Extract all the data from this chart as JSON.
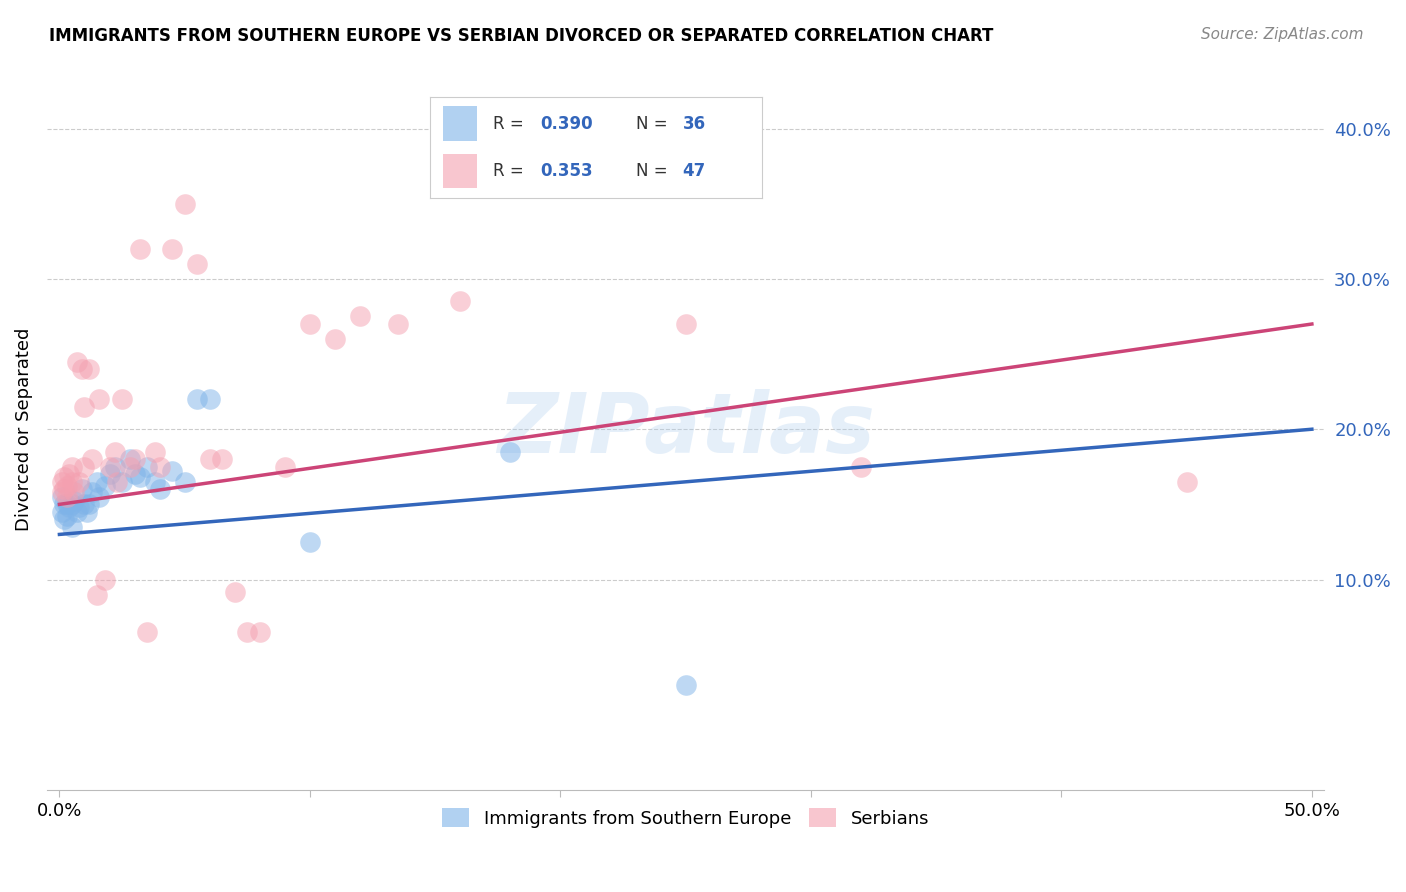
{
  "title": "IMMIGRANTS FROM SOUTHERN EUROPE VS SERBIAN DIVORCED OR SEPARATED CORRELATION CHART",
  "source": "Source: ZipAtlas.com",
  "ylabel": "Divorced or Separated",
  "xlim": [
    -0.005,
    0.505
  ],
  "ylim": [
    -0.04,
    0.44
  ],
  "yticks": [
    0.1,
    0.2,
    0.3,
    0.4
  ],
  "ytick_labels": [
    "10.0%",
    "20.0%",
    "30.0%",
    "40.0%"
  ],
  "legend_label1": "Immigrants from Southern Europe",
  "legend_label2": "Serbians",
  "blue_color": "#7EB3E8",
  "pink_color": "#F4A0B0",
  "blue_line_color": "#3366BB",
  "pink_line_color": "#CC4477",
  "watermark": "ZIPatlas",
  "blue_line_x0": 0.0,
  "blue_line_y0": 0.13,
  "blue_line_x1": 0.5,
  "blue_line_y1": 0.2,
  "pink_line_x0": 0.0,
  "pink_line_y0": 0.15,
  "pink_line_x1": 0.5,
  "pink_line_y1": 0.27,
  "blue_scatter_x": [
    0.001,
    0.001,
    0.002,
    0.002,
    0.003,
    0.003,
    0.004,
    0.005,
    0.005,
    0.006,
    0.007,
    0.008,
    0.009,
    0.01,
    0.011,
    0.012,
    0.013,
    0.015,
    0.016,
    0.018,
    0.02,
    0.022,
    0.025,
    0.028,
    0.03,
    0.032,
    0.035,
    0.038,
    0.04,
    0.045,
    0.05,
    0.055,
    0.06,
    0.1,
    0.18,
    0.25
  ],
  "blue_scatter_y": [
    0.145,
    0.155,
    0.14,
    0.15,
    0.15,
    0.142,
    0.148,
    0.135,
    0.15,
    0.152,
    0.145,
    0.148,
    0.16,
    0.15,
    0.145,
    0.15,
    0.158,
    0.165,
    0.155,
    0.162,
    0.17,
    0.175,
    0.165,
    0.18,
    0.17,
    0.168,
    0.175,
    0.165,
    0.16,
    0.172,
    0.165,
    0.22,
    0.22,
    0.125,
    0.185,
    0.03
  ],
  "pink_scatter_x": [
    0.001,
    0.001,
    0.002,
    0.002,
    0.003,
    0.003,
    0.004,
    0.005,
    0.005,
    0.006,
    0.007,
    0.008,
    0.009,
    0.01,
    0.01,
    0.012,
    0.013,
    0.015,
    0.016,
    0.018,
    0.02,
    0.022,
    0.023,
    0.025,
    0.028,
    0.03,
    0.032,
    0.035,
    0.038,
    0.04,
    0.045,
    0.05,
    0.055,
    0.06,
    0.065,
    0.07,
    0.075,
    0.08,
    0.09,
    0.1,
    0.11,
    0.12,
    0.135,
    0.16,
    0.25,
    0.32,
    0.45
  ],
  "pink_scatter_y": [
    0.158,
    0.165,
    0.16,
    0.168,
    0.155,
    0.162,
    0.17,
    0.165,
    0.175,
    0.158,
    0.245,
    0.165,
    0.24,
    0.175,
    0.215,
    0.24,
    0.18,
    0.09,
    0.22,
    0.1,
    0.175,
    0.185,
    0.165,
    0.22,
    0.175,
    0.18,
    0.32,
    0.065,
    0.185,
    0.175,
    0.32,
    0.35,
    0.31,
    0.18,
    0.18,
    0.092,
    0.065,
    0.065,
    0.175,
    0.27,
    0.26,
    0.275,
    0.27,
    0.285,
    0.27,
    0.175,
    0.165
  ]
}
